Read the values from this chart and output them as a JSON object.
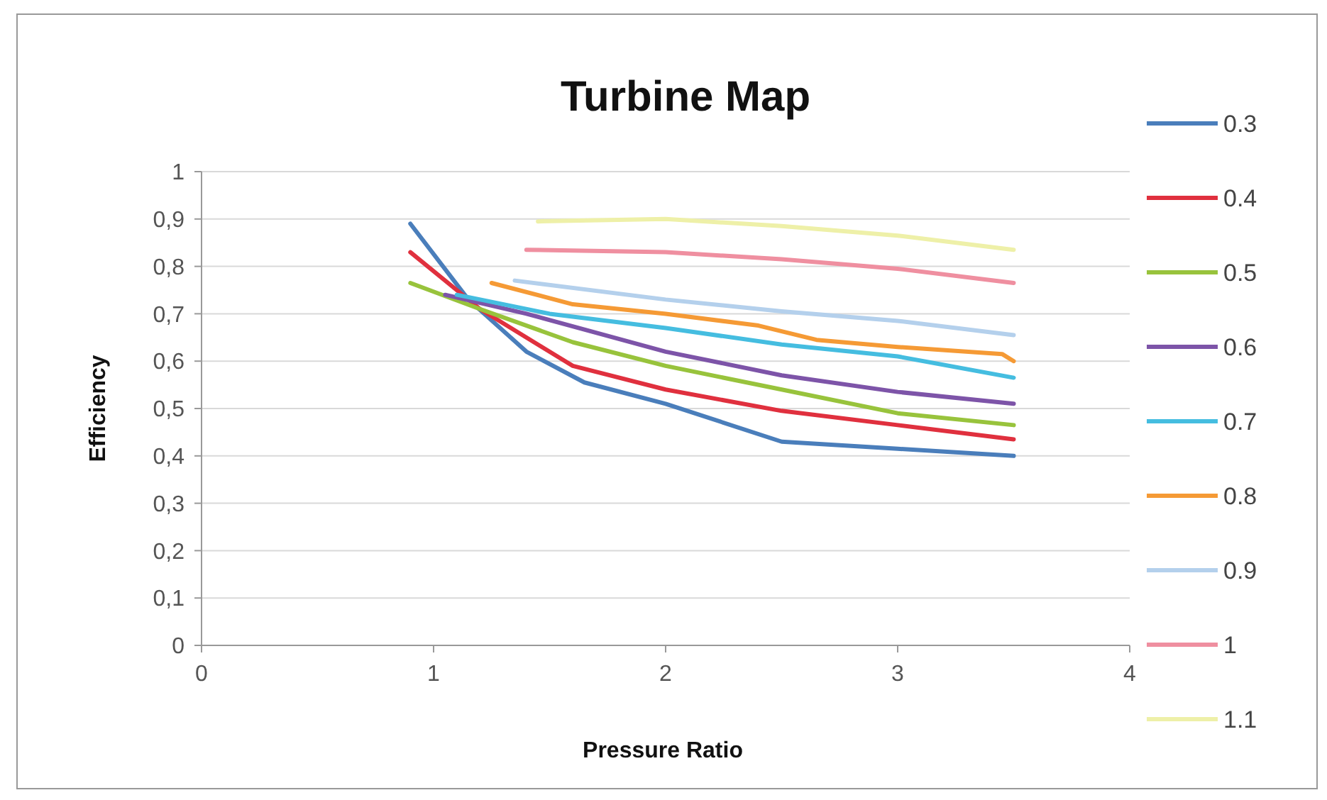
{
  "chart_data": {
    "type": "line",
    "title": "Turbine Map",
    "xlabel": "Pressure Ratio",
    "ylabel": "Efficiency",
    "xlim": [
      0,
      4
    ],
    "xticks": [
      0,
      1,
      2,
      3,
      4
    ],
    "ylim": [
      0,
      1
    ],
    "yticks": [
      0,
      {
        "value": 0.1,
        "label": "0,1"
      },
      {
        "value": 0.2,
        "label": "0,2"
      },
      {
        "value": 0.3,
        "label": "0,3"
      },
      {
        "value": 0.4,
        "label": "0,4"
      },
      {
        "value": 0.5,
        "label": "0,5"
      },
      {
        "value": 0.6,
        "label": "0,6"
      },
      {
        "value": 0.7,
        "label": "0,7"
      },
      {
        "value": 0.8,
        "label": "0,8"
      },
      {
        "value": 0.9,
        "label": "0,9"
      },
      1
    ],
    "grid": "y",
    "legend": "right",
    "marker": "none",
    "line_style": "solid",
    "series": [
      {
        "name": "0.3",
        "color": "#4a7ebb",
        "x": [
          0.9,
          1.15,
          1.4,
          1.65,
          2,
          2.5,
          3,
          3.5
        ],
        "values": [
          0.89,
          0.73,
          0.62,
          0.555,
          0.51,
          0.43,
          0.415,
          0.4
        ]
      },
      {
        "name": "0.4",
        "color": "#e0303e",
        "x": [
          0.9,
          1.2,
          1.6,
          2,
          2.5,
          3,
          3.5
        ],
        "values": [
          0.83,
          0.71,
          0.59,
          0.54,
          0.495,
          0.465,
          0.435
        ]
      },
      {
        "name": "0.5",
        "color": "#98c33c",
        "x": [
          0.9,
          1.2,
          1.6,
          2,
          2.5,
          3,
          3.5
        ],
        "values": [
          0.765,
          0.71,
          0.64,
          0.59,
          0.54,
          0.49,
          0.465
        ]
      },
      {
        "name": "0.6",
        "color": "#7d54a8",
        "x": [
          1.05,
          1.4,
          2,
          2.5,
          3,
          3.5
        ],
        "values": [
          0.74,
          0.7,
          0.62,
          0.57,
          0.535,
          0.51
        ]
      },
      {
        "name": "0.7",
        "color": "#45bde0",
        "x": [
          1.1,
          1.5,
          2,
          2.5,
          3,
          3.5
        ],
        "values": [
          0.74,
          0.7,
          0.67,
          0.635,
          0.61,
          0.565
        ]
      },
      {
        "name": "0.8",
        "color": "#f59a35",
        "x": [
          1.25,
          1.6,
          2,
          2.4,
          2.65,
          3,
          3.45,
          3.5
        ],
        "values": [
          0.765,
          0.72,
          0.7,
          0.675,
          0.645,
          0.63,
          0.615,
          0.6
        ]
      },
      {
        "name": "0.9",
        "color": "#b4d0ec",
        "x": [
          1.35,
          2,
          2.5,
          3,
          3.5
        ],
        "values": [
          0.77,
          0.73,
          0.705,
          0.685,
          0.655
        ]
      },
      {
        "name": "1",
        "color": "#ef8fa0",
        "x": [
          1.4,
          2,
          2.5,
          3,
          3.5
        ],
        "values": [
          0.835,
          0.83,
          0.815,
          0.795,
          0.765
        ]
      },
      {
        "name": "1.1",
        "color": "#eef0a8",
        "x": [
          1.45,
          2,
          2.5,
          3,
          3.5
        ],
        "values": [
          0.895,
          0.9,
          0.885,
          0.865,
          0.835
        ]
      }
    ]
  }
}
